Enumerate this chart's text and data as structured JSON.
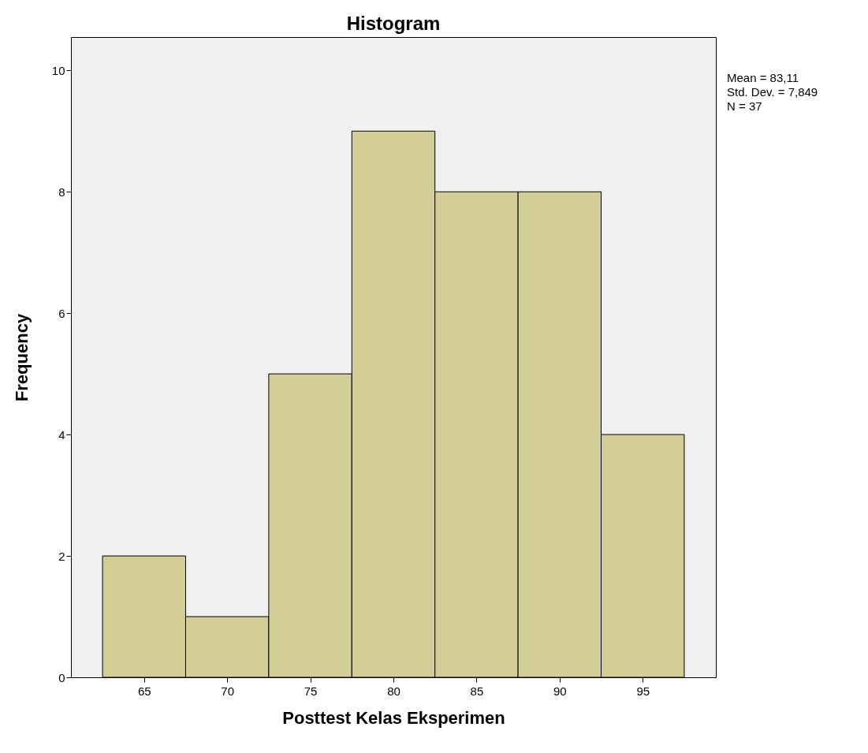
{
  "chart_data": {
    "type": "histogram",
    "title": "Histogram",
    "xlabel": "Posttest Kelas Eksperimen",
    "ylabel": "Frequency",
    "bins": [
      62.5,
      67.5,
      72.5,
      77.5,
      82.5,
      87.5,
      92.5,
      97.5
    ],
    "values": [
      2,
      1,
      5,
      9,
      8,
      8,
      4
    ],
    "color": "#d3ce97",
    "xlim": [
      60.6,
      99.4
    ],
    "ylim": [
      0,
      10.55
    ],
    "xticks": [
      65,
      70,
      75,
      80,
      85,
      90,
      95
    ],
    "yticks": [
      0,
      2,
      4,
      6,
      8,
      10
    ],
    "annotations": [
      "Mean = 83,11",
      "Std. Dev. = 7,849",
      "N = 37"
    ]
  }
}
